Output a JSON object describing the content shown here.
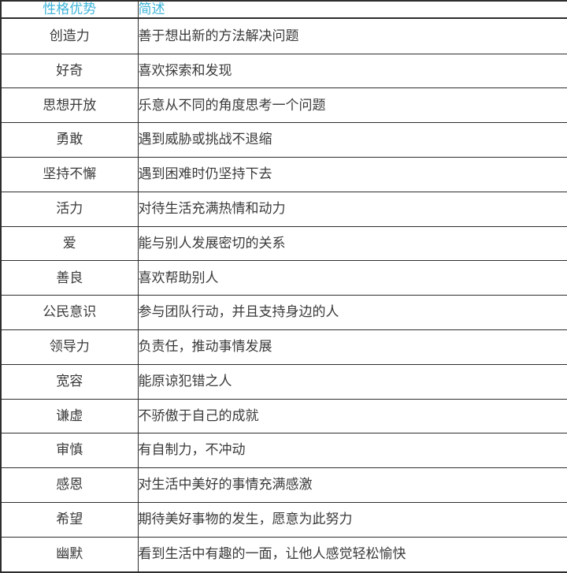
{
  "colors": {
    "header_text": "#41b5da",
    "body_text": "#3a3a3a",
    "border": "#2d2d2d",
    "background": "#ffffff"
  },
  "table": {
    "headers": {
      "strength": "性格优势",
      "description": "简述"
    },
    "rows": [
      {
        "strength": "创造力",
        "description": "善于想出新的方法解决问题"
      },
      {
        "strength": "好奇",
        "description": "喜欢探索和发现"
      },
      {
        "strength": "思想开放",
        "description": "乐意从不同的角度思考一个问题"
      },
      {
        "strength": "勇敢",
        "description": "遇到威胁或挑战不退缩"
      },
      {
        "strength": "坚持不懈",
        "description": "遇到困难时仍坚持下去"
      },
      {
        "strength": "活力",
        "description": "对待生活充满热情和动力"
      },
      {
        "strength": "爱",
        "description": "能与别人发展密切的关系"
      },
      {
        "strength": "善良",
        "description": "喜欢帮助别人"
      },
      {
        "strength": "公民意识",
        "description": "参与团队行动，并且支持身边的人"
      },
      {
        "strength": "领导力",
        "description": "负责任，推动事情发展"
      },
      {
        "strength": "宽容",
        "description": "能原谅犯错之人"
      },
      {
        "strength": "谦虚",
        "description": "不骄傲于自己的成就"
      },
      {
        "strength": "审慎",
        "description": "有自制力，不冲动"
      },
      {
        "strength": "感恩",
        "description": "对生活中美好的事情充满感激"
      },
      {
        "strength": "希望",
        "description": "期待美好事物的发生，愿意为此努力"
      },
      {
        "strength": "幽默",
        "description": "看到生活中有趣的一面，让他人感觉轻松愉快"
      }
    ]
  }
}
